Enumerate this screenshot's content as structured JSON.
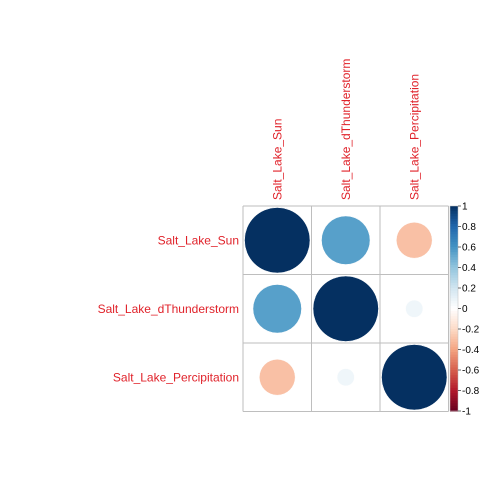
{
  "chart_data": {
    "type": "heatmap",
    "variables": [
      "Salt_Lake_Sun",
      "Salt_Lake_dThunderstorm",
      "Salt_Lake_Percipitation"
    ],
    "matrix": [
      [
        1.0,
        0.55,
        -0.3
      ],
      [
        0.55,
        1.0,
        0.07
      ],
      [
        -0.3,
        0.07,
        1.0
      ]
    ],
    "colorbar": {
      "range": [
        -1,
        1
      ],
      "ticks": [
        "1",
        "0.8",
        "0.6",
        "0.4",
        "0.2",
        "0",
        "-0.2",
        "-0.4",
        "-0.6",
        "-0.8",
        "-1"
      ]
    },
    "label_color": "#E0222A",
    "grid_color": "#BEBEBE",
    "gradient_colors": [
      "#67001F",
      "#B2182B",
      "#D6604D",
      "#F4A582",
      "#FDDBC7",
      "#FFFFFF",
      "#D1E5F0",
      "#92C5DE",
      "#4393C3",
      "#2166AC",
      "#053061"
    ]
  }
}
